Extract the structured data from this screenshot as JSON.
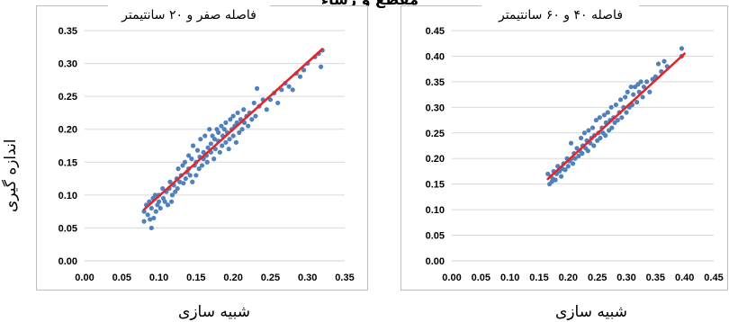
{
  "page": {
    "top_title": "مقطع و رشاء",
    "y_label": "اندازه گیری"
  },
  "colors": {
    "points": "#4f81bd",
    "fit_line": "#e3262b",
    "grid": "#d9d9d9",
    "frame": "#bfbfbf"
  },
  "chart_data": [
    {
      "type": "scatter",
      "title": "فاصله صفر و ۲۰ سانتیمتر",
      "xlabel": "شبیه سازی",
      "ylabel": "اندازه گیری",
      "xlim": [
        0,
        0.35
      ],
      "ylim": [
        0,
        0.35
      ],
      "xticks": [
        "0.00",
        "0.05",
        "0.10",
        "0.15",
        "0.20",
        "0.25",
        "0.30",
        "0.35"
      ],
      "yticks": [
        "0.00",
        "0.05",
        "0.10",
        "0.15",
        "0.20",
        "0.25",
        "0.30",
        "0.35"
      ],
      "grid": "horizontal",
      "fit_line": {
        "x": [
          0.08,
          0.32
        ],
        "y": [
          0.078,
          0.322
        ]
      },
      "points": [
        [
          0.08,
          0.06
        ],
        [
          0.08,
          0.075
        ],
        [
          0.083,
          0.085
        ],
        [
          0.085,
          0.07
        ],
        [
          0.087,
          0.09
        ],
        [
          0.088,
          0.063
        ],
        [
          0.09,
          0.05
        ],
        [
          0.09,
          0.08
        ],
        [
          0.092,
          0.095
        ],
        [
          0.093,
          0.065
        ],
        [
          0.095,
          0.1
        ],
        [
          0.096,
          0.075
        ],
        [
          0.098,
          0.085
        ],
        [
          0.1,
          0.09
        ],
        [
          0.1,
          0.1
        ],
        [
          0.102,
          0.08
        ],
        [
          0.105,
          0.11
        ],
        [
          0.106,
          0.095
        ],
        [
          0.108,
          0.09
        ],
        [
          0.11,
          0.105
        ],
        [
          0.112,
          0.085
        ],
        [
          0.114,
          0.11
        ],
        [
          0.115,
          0.12
        ],
        [
          0.117,
          0.09
        ],
        [
          0.118,
          0.1
        ],
        [
          0.12,
          0.115
        ],
        [
          0.122,
          0.105
        ],
        [
          0.124,
          0.125
        ],
        [
          0.125,
          0.11
        ],
        [
          0.126,
          0.14
        ],
        [
          0.128,
          0.12
        ],
        [
          0.13,
          0.13
        ],
        [
          0.132,
          0.145
        ],
        [
          0.133,
          0.118
        ],
        [
          0.135,
          0.15
        ],
        [
          0.136,
          0.125
        ],
        [
          0.138,
          0.135
        ],
        [
          0.14,
          0.16
        ],
        [
          0.14,
          0.14
        ],
        [
          0.142,
          0.13
        ],
        [
          0.144,
          0.155
        ],
        [
          0.145,
          0.12
        ],
        [
          0.146,
          0.175
        ],
        [
          0.148,
          0.145
        ],
        [
          0.15,
          0.15
        ],
        [
          0.15,
          0.13
        ],
        [
          0.152,
          0.168
        ],
        [
          0.154,
          0.14
        ],
        [
          0.155,
          0.158
        ],
        [
          0.156,
          0.185
        ],
        [
          0.158,
          0.145
        ],
        [
          0.16,
          0.165
        ],
        [
          0.16,
          0.155
        ],
        [
          0.162,
          0.19
        ],
        [
          0.164,
          0.16
        ],
        [
          0.165,
          0.15
        ],
        [
          0.166,
          0.172
        ],
        [
          0.168,
          0.2
        ],
        [
          0.17,
          0.165
        ],
        [
          0.17,
          0.178
        ],
        [
          0.172,
          0.19
        ],
        [
          0.174,
          0.155
        ],
        [
          0.175,
          0.185
        ],
        [
          0.176,
          0.17
        ],
        [
          0.178,
          0.2
        ],
        [
          0.18,
          0.182
        ],
        [
          0.18,
          0.195
        ],
        [
          0.182,
          0.165
        ],
        [
          0.184,
          0.205
        ],
        [
          0.185,
          0.175
        ],
        [
          0.186,
          0.19
        ],
        [
          0.188,
          0.2
        ],
        [
          0.19,
          0.18
        ],
        [
          0.19,
          0.21
        ],
        [
          0.192,
          0.195
        ],
        [
          0.194,
          0.17
        ],
        [
          0.195,
          0.185
        ],
        [
          0.196,
          0.215
        ],
        [
          0.198,
          0.2
        ],
        [
          0.2,
          0.19
        ],
        [
          0.2,
          0.22
        ],
        [
          0.202,
          0.205
        ],
        [
          0.204,
          0.18
        ],
        [
          0.205,
          0.21
        ],
        [
          0.206,
          0.225
        ],
        [
          0.208,
          0.195
        ],
        [
          0.21,
          0.215
        ],
        [
          0.212,
          0.2
        ],
        [
          0.214,
          0.23
        ],
        [
          0.215,
          0.21
        ],
        [
          0.218,
          0.22
        ],
        [
          0.22,
          0.205
        ],
        [
          0.222,
          0.225
        ],
        [
          0.225,
          0.215
        ],
        [
          0.228,
          0.24
        ],
        [
          0.23,
          0.22
        ],
        [
          0.232,
          0.262
        ],
        [
          0.235,
          0.235
        ],
        [
          0.24,
          0.245
        ],
        [
          0.245,
          0.23
        ],
        [
          0.25,
          0.245
        ],
        [
          0.255,
          0.255
        ],
        [
          0.26,
          0.24
        ],
        [
          0.265,
          0.26
        ],
        [
          0.27,
          0.27
        ],
        [
          0.275,
          0.265
        ],
        [
          0.28,
          0.26
        ],
        [
          0.285,
          0.285
        ],
        [
          0.29,
          0.28
        ],
        [
          0.295,
          0.29
        ],
        [
          0.3,
          0.3
        ],
        [
          0.31,
          0.31
        ],
        [
          0.315,
          0.315
        ],
        [
          0.318,
          0.295
        ],
        [
          0.32,
          0.32
        ]
      ]
    },
    {
      "type": "scatter",
      "title": "فاصله ۴۰ و ۶۰ سانتیمتر",
      "xlabel": "شبیه سازی",
      "ylabel": "اندازه گیری",
      "xlim": [
        0,
        0.45
      ],
      "ylim": [
        0,
        0.45
      ],
      "xticks": [
        "0.00",
        "0.05",
        "0.10",
        "0.15",
        "0.20",
        "0.25",
        "0.30",
        "0.35",
        "0.40",
        "0.45"
      ],
      "yticks": [
        "0.00",
        "0.05",
        "0.10",
        "0.15",
        "0.20",
        "0.25",
        "0.30",
        "0.35",
        "0.40",
        "0.45"
      ],
      "grid": "horizontal",
      "fit_line": {
        "x": [
          0.165,
          0.4
        ],
        "y": [
          0.16,
          0.405
        ]
      },
      "points": [
        [
          0.165,
          0.17
        ],
        [
          0.168,
          0.15
        ],
        [
          0.17,
          0.165
        ],
        [
          0.172,
          0.155
        ],
        [
          0.174,
          0.16
        ],
        [
          0.175,
          0.175
        ],
        [
          0.178,
          0.158
        ],
        [
          0.18,
          0.17
        ],
        [
          0.182,
          0.185
        ],
        [
          0.185,
          0.175
        ],
        [
          0.188,
          0.165
        ],
        [
          0.19,
          0.18
        ],
        [
          0.192,
          0.19
        ],
        [
          0.195,
          0.178
        ],
        [
          0.198,
          0.2
        ],
        [
          0.2,
          0.185
        ],
        [
          0.202,
          0.195
        ],
        [
          0.205,
          0.23
        ],
        [
          0.206,
          0.2
        ],
        [
          0.208,
          0.19
        ],
        [
          0.21,
          0.21
        ],
        [
          0.212,
          0.2
        ],
        [
          0.215,
          0.22
        ],
        [
          0.218,
          0.205
        ],
        [
          0.22,
          0.215
        ],
        [
          0.222,
          0.24
        ],
        [
          0.224,
          0.21
        ],
        [
          0.225,
          0.225
        ],
        [
          0.228,
          0.25
        ],
        [
          0.23,
          0.22
        ],
        [
          0.232,
          0.235
        ],
        [
          0.234,
          0.215
        ],
        [
          0.235,
          0.255
        ],
        [
          0.238,
          0.23
        ],
        [
          0.24,
          0.24
        ],
        [
          0.242,
          0.26
        ],
        [
          0.244,
          0.225
        ],
        [
          0.245,
          0.245
        ],
        [
          0.248,
          0.275
        ],
        [
          0.25,
          0.235
        ],
        [
          0.252,
          0.25
        ],
        [
          0.254,
          0.28
        ],
        [
          0.255,
          0.24
        ],
        [
          0.258,
          0.26
        ],
        [
          0.26,
          0.25
        ],
        [
          0.262,
          0.285
        ],
        [
          0.264,
          0.245
        ],
        [
          0.265,
          0.27
        ],
        [
          0.268,
          0.29
        ],
        [
          0.27,
          0.255
        ],
        [
          0.272,
          0.275
        ],
        [
          0.274,
          0.3
        ],
        [
          0.275,
          0.26
        ],
        [
          0.278,
          0.28
        ],
        [
          0.28,
          0.27
        ],
        [
          0.282,
          0.305
        ],
        [
          0.285,
          0.275
        ],
        [
          0.288,
          0.29
        ],
        [
          0.29,
          0.315
        ],
        [
          0.292,
          0.28
        ],
        [
          0.295,
          0.3
        ],
        [
          0.298,
          0.32
        ],
        [
          0.3,
          0.29
        ],
        [
          0.302,
          0.33
        ],
        [
          0.305,
          0.3
        ],
        [
          0.308,
          0.34
        ],
        [
          0.31,
          0.305
        ],
        [
          0.312,
          0.325
        ],
        [
          0.315,
          0.34
        ],
        [
          0.318,
          0.31
        ],
        [
          0.32,
          0.345
        ],
        [
          0.322,
          0.33
        ],
        [
          0.325,
          0.35
        ],
        [
          0.328,
          0.32
        ],
        [
          0.33,
          0.34
        ],
        [
          0.335,
          0.35
        ],
        [
          0.34,
          0.33
        ],
        [
          0.345,
          0.355
        ],
        [
          0.35,
          0.36
        ],
        [
          0.355,
          0.385
        ],
        [
          0.36,
          0.37
        ],
        [
          0.365,
          0.39
        ],
        [
          0.37,
          0.38
        ],
        [
          0.395,
          0.4
        ],
        [
          0.395,
          0.415
        ]
      ]
    }
  ]
}
